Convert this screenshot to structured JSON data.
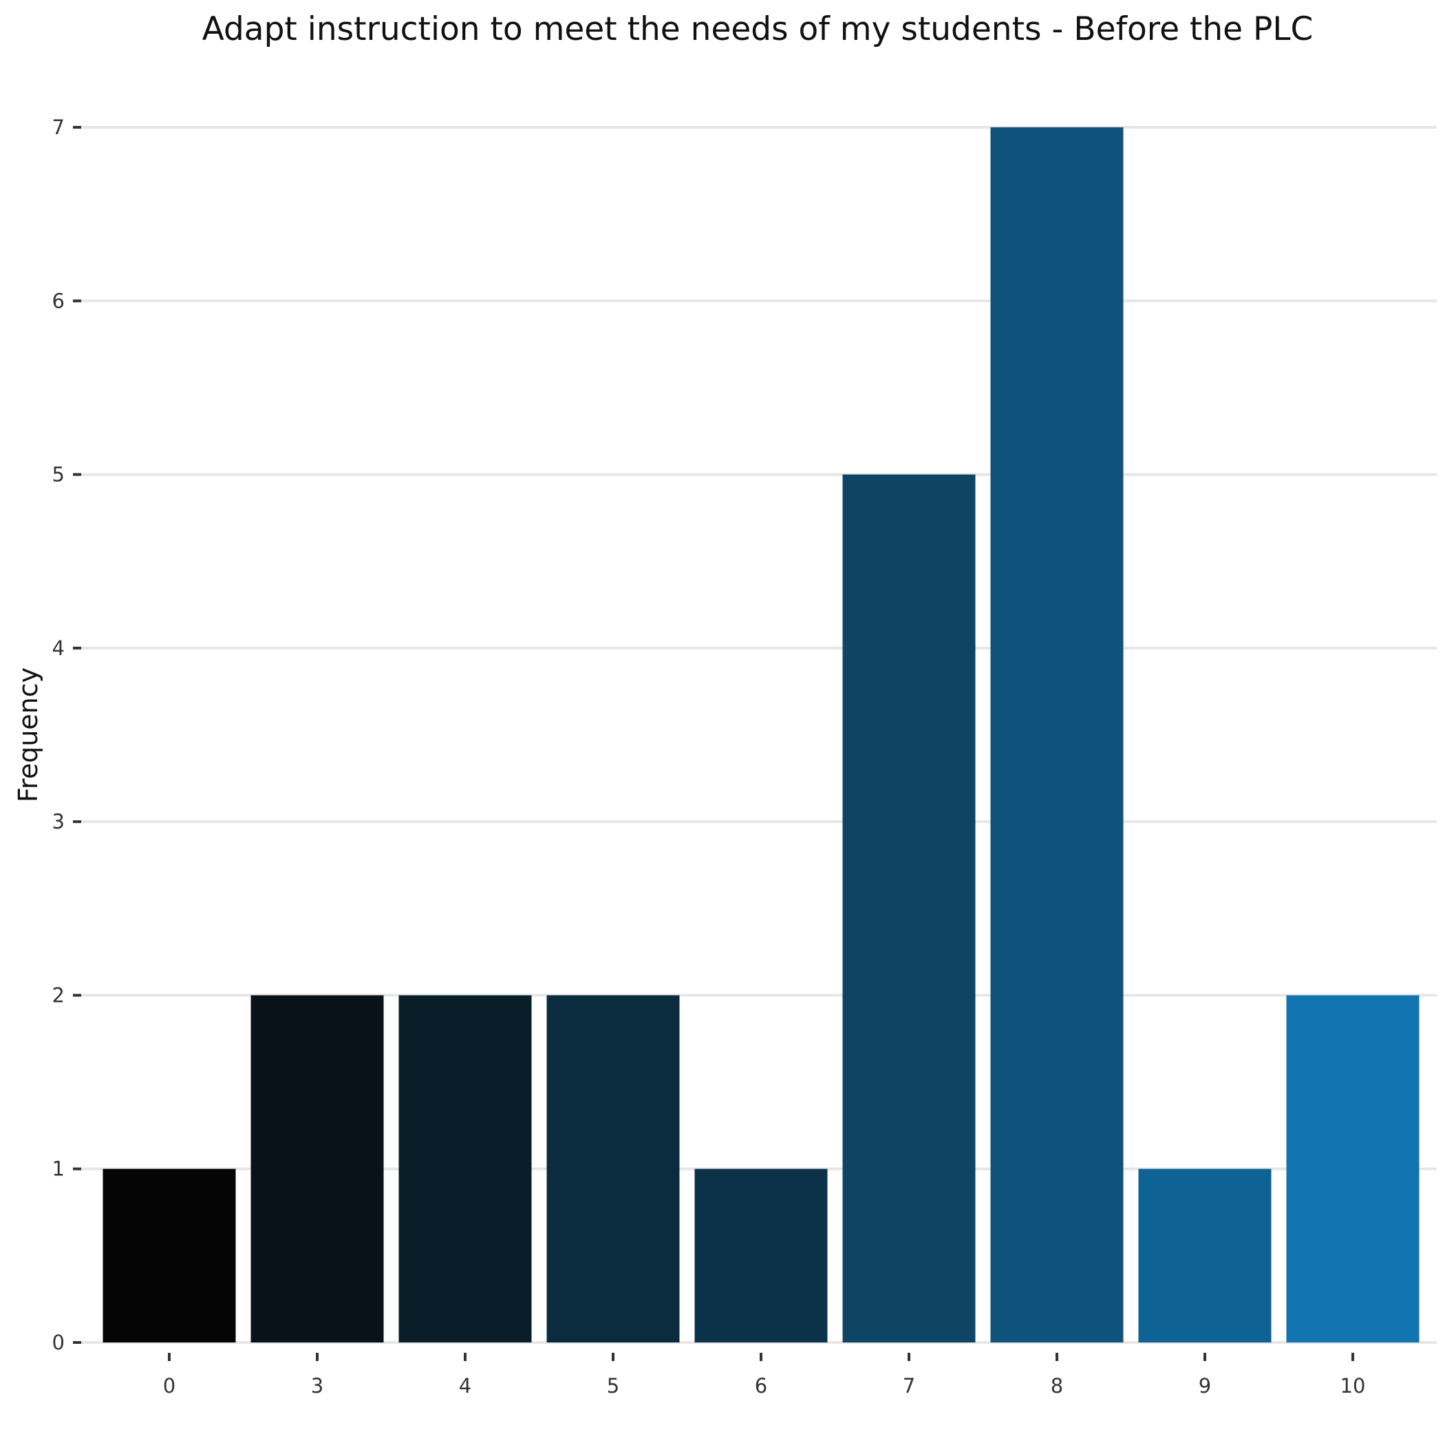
{
  "chart_data": {
    "type": "bar",
    "title": "Adapt instruction to meet the needs of my students - Before the PLC",
    "xlabel": "",
    "ylabel": "Frequency",
    "categories": [
      "0",
      "3",
      "4",
      "5",
      "6",
      "7",
      "8",
      "9",
      "10"
    ],
    "values": [
      1,
      2,
      2,
      2,
      1,
      5,
      7,
      1,
      2
    ],
    "colors": [
      "#050505",
      "#0a1219",
      "#0a1e2a",
      "#0b2b3e",
      "#0c3249",
      "#0f4564",
      "#0f537c",
      "#0e6294",
      "#1174b1"
    ],
    "ylim": [
      0,
      7
    ],
    "yticks": [
      "0",
      "1",
      "2",
      "3",
      "4",
      "5",
      "6",
      "7"
    ],
    "grid": true,
    "legend": "none"
  }
}
